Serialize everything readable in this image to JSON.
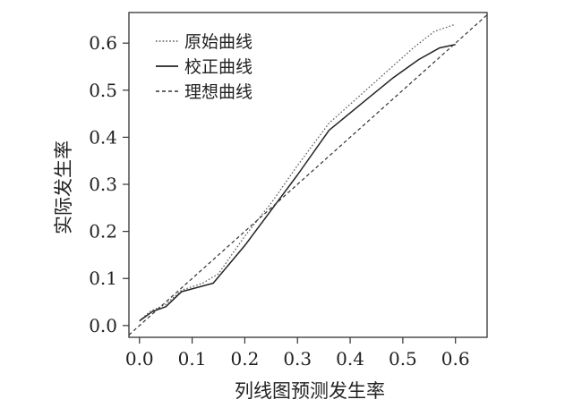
{
  "chart_data": {
    "type": "line",
    "title": "",
    "xlabel": "列线图预测发生率",
    "ylabel": "实际发生率",
    "xlim": [
      -0.02,
      0.66
    ],
    "ylim": [
      -0.025,
      0.665
    ],
    "xticks": [
      0.0,
      0.1,
      0.2,
      0.3,
      0.4,
      0.5,
      0.6
    ],
    "yticks": [
      0.0,
      0.1,
      0.2,
      0.3,
      0.4,
      0.5,
      0.6
    ],
    "xtick_labels": [
      "0.0",
      "0.1",
      "0.2",
      "0.3",
      "0.4",
      "0.5",
      "0.6"
    ],
    "ytick_labels": [
      "0.0",
      "0.1",
      "0.2",
      "0.3",
      "0.4",
      "0.5",
      "0.6"
    ],
    "grid": false,
    "legend_position": "top-left",
    "series": [
      {
        "name": "原始曲线",
        "style": "dotted",
        "color": "#555555",
        "x": [
          0.0,
          0.02,
          0.05,
          0.08,
          0.12,
          0.15,
          0.2,
          0.25,
          0.3,
          0.36,
          0.42,
          0.48,
          0.52,
          0.56,
          0.6
        ],
        "y": [
          0.01,
          0.03,
          0.045,
          0.075,
          0.09,
          0.11,
          0.19,
          0.26,
          0.34,
          0.43,
          0.49,
          0.55,
          0.59,
          0.625,
          0.64
        ]
      },
      {
        "name": "校正曲线",
        "style": "solid",
        "color": "#222222",
        "x": [
          0.0,
          0.025,
          0.05,
          0.08,
          0.14,
          0.2,
          0.26,
          0.3,
          0.36,
          0.42,
          0.48,
          0.53,
          0.57,
          0.6
        ],
        "y": [
          0.01,
          0.03,
          0.04,
          0.072,
          0.09,
          0.17,
          0.26,
          0.32,
          0.415,
          0.47,
          0.525,
          0.565,
          0.59,
          0.597
        ]
      },
      {
        "name": "理想曲线",
        "style": "dashed",
        "color": "#333333",
        "x": [
          -0.02,
          0.66
        ],
        "y": [
          -0.02,
          0.66
        ]
      }
    ]
  }
}
